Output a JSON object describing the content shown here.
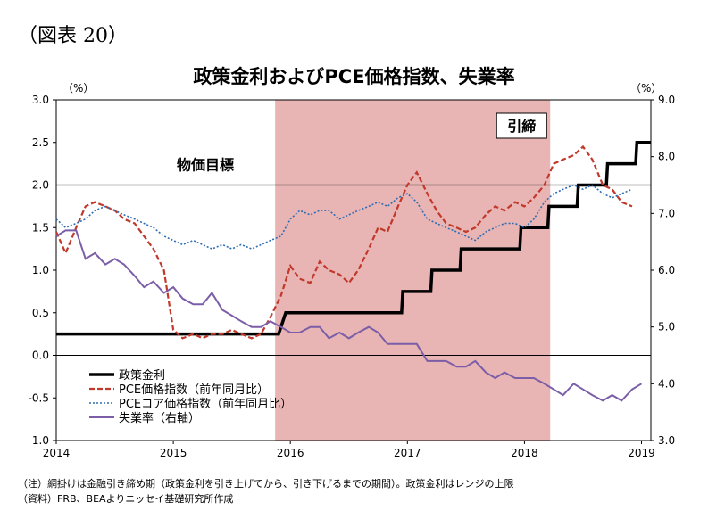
{
  "figure_label": "（図表 20）",
  "chart_data": {
    "type": "line",
    "title": "政策金利およびPCE価格指数、失業率",
    "left_unit": "（%）",
    "right_unit": "（%）",
    "x_tick_labels": [
      "2014",
      "2015",
      "2016",
      "2017",
      "2018",
      "2019"
    ],
    "x_range": [
      2014.0,
      2019.08
    ],
    "y_left_range": [
      -1.0,
      3.0
    ],
    "y_left_ticks": [
      "3.0",
      "2.5",
      "2.0",
      "1.5",
      "1.0",
      "0.5",
      "0.0",
      "-0.5",
      "-1.0"
    ],
    "y_right_range": [
      3.0,
      9.0
    ],
    "y_right_ticks": [
      "9.0",
      "8.0",
      "7.0",
      "6.0",
      "5.0",
      "4.0",
      "3.0"
    ],
    "shaded_period": {
      "start": 2015.87,
      "end": 2018.22,
      "label": "引締",
      "color": "#e8b4b4"
    },
    "target_line": {
      "value": 2.0,
      "label": "物価目標"
    },
    "series": [
      {
        "name": "政策金利",
        "axis": "left",
        "color": "#000000",
        "points": [
          [
            2014.0,
            0.25
          ],
          [
            2015.9,
            0.25
          ],
          [
            2015.96,
            0.5
          ],
          [
            2016.95,
            0.5
          ],
          [
            2016.96,
            0.75
          ],
          [
            2017.2,
            0.75
          ],
          [
            2017.21,
            1.0
          ],
          [
            2017.45,
            1.0
          ],
          [
            2017.46,
            1.25
          ],
          [
            2017.96,
            1.25
          ],
          [
            2017.97,
            1.5
          ],
          [
            2018.2,
            1.5
          ],
          [
            2018.21,
            1.75
          ],
          [
            2018.45,
            1.75
          ],
          [
            2018.46,
            2.0
          ],
          [
            2018.7,
            2.0
          ],
          [
            2018.71,
            2.25
          ],
          [
            2018.95,
            2.25
          ],
          [
            2018.96,
            2.5
          ],
          [
            2019.08,
            2.5
          ]
        ]
      },
      {
        "name": "PCE価格指数（前年同月比）",
        "axis": "left",
        "color": "#c0392b",
        "points": [
          [
            2014.0,
            1.45
          ],
          [
            2014.08,
            1.2
          ],
          [
            2014.17,
            1.5
          ],
          [
            2014.25,
            1.75
          ],
          [
            2014.33,
            1.8
          ],
          [
            2014.42,
            1.75
          ],
          [
            2014.5,
            1.7
          ],
          [
            2014.58,
            1.6
          ],
          [
            2014.67,
            1.55
          ],
          [
            2014.75,
            1.4
          ],
          [
            2014.83,
            1.25
          ],
          [
            2014.92,
            1.0
          ],
          [
            2015.0,
            0.3
          ],
          [
            2015.08,
            0.2
          ],
          [
            2015.17,
            0.25
          ],
          [
            2015.25,
            0.2
          ],
          [
            2015.33,
            0.25
          ],
          [
            2015.42,
            0.25
          ],
          [
            2015.5,
            0.3
          ],
          [
            2015.58,
            0.25
          ],
          [
            2015.67,
            0.2
          ],
          [
            2015.75,
            0.25
          ],
          [
            2015.83,
            0.45
          ],
          [
            2015.92,
            0.7
          ],
          [
            2016.0,
            1.05
          ],
          [
            2016.08,
            0.9
          ],
          [
            2016.17,
            0.85
          ],
          [
            2016.25,
            1.1
          ],
          [
            2016.33,
            1.0
          ],
          [
            2016.42,
            0.95
          ],
          [
            2016.5,
            0.85
          ],
          [
            2016.58,
            1.0
          ],
          [
            2016.67,
            1.25
          ],
          [
            2016.75,
            1.5
          ],
          [
            2016.83,
            1.45
          ],
          [
            2016.92,
            1.75
          ],
          [
            2017.0,
            2.0
          ],
          [
            2017.08,
            2.15
          ],
          [
            2017.17,
            1.9
          ],
          [
            2017.25,
            1.7
          ],
          [
            2017.33,
            1.55
          ],
          [
            2017.42,
            1.5
          ],
          [
            2017.5,
            1.45
          ],
          [
            2017.58,
            1.5
          ],
          [
            2017.67,
            1.65
          ],
          [
            2017.75,
            1.75
          ],
          [
            2017.83,
            1.7
          ],
          [
            2017.92,
            1.8
          ],
          [
            2018.0,
            1.75
          ],
          [
            2018.08,
            1.85
          ],
          [
            2018.17,
            2.0
          ],
          [
            2018.25,
            2.25
          ],
          [
            2018.33,
            2.3
          ],
          [
            2018.42,
            2.35
          ],
          [
            2018.5,
            2.45
          ],
          [
            2018.58,
            2.3
          ],
          [
            2018.67,
            2.0
          ],
          [
            2018.75,
            1.95
          ],
          [
            2018.83,
            1.8
          ],
          [
            2018.92,
            1.75
          ]
        ]
      },
      {
        "name": "PCEコア価格指数（前年同月比）",
        "axis": "left",
        "color": "#2e6db4",
        "points": [
          [
            2014.0,
            1.6
          ],
          [
            2014.08,
            1.5
          ],
          [
            2014.17,
            1.55
          ],
          [
            2014.25,
            1.6
          ],
          [
            2014.33,
            1.7
          ],
          [
            2014.42,
            1.75
          ],
          [
            2014.5,
            1.7
          ],
          [
            2014.58,
            1.65
          ],
          [
            2014.67,
            1.6
          ],
          [
            2014.75,
            1.55
          ],
          [
            2014.83,
            1.5
          ],
          [
            2014.92,
            1.4
          ],
          [
            2015.0,
            1.35
          ],
          [
            2015.08,
            1.3
          ],
          [
            2015.17,
            1.35
          ],
          [
            2015.25,
            1.3
          ],
          [
            2015.33,
            1.25
          ],
          [
            2015.42,
            1.3
          ],
          [
            2015.5,
            1.25
          ],
          [
            2015.58,
            1.3
          ],
          [
            2015.67,
            1.25
          ],
          [
            2015.75,
            1.3
          ],
          [
            2015.83,
            1.35
          ],
          [
            2015.92,
            1.4
          ],
          [
            2016.0,
            1.6
          ],
          [
            2016.08,
            1.7
          ],
          [
            2016.17,
            1.65
          ],
          [
            2016.25,
            1.7
          ],
          [
            2016.33,
            1.7
          ],
          [
            2016.42,
            1.6
          ],
          [
            2016.5,
            1.65
          ],
          [
            2016.58,
            1.7
          ],
          [
            2016.67,
            1.75
          ],
          [
            2016.75,
            1.8
          ],
          [
            2016.83,
            1.75
          ],
          [
            2016.92,
            1.85
          ],
          [
            2017.0,
            1.9
          ],
          [
            2017.08,
            1.8
          ],
          [
            2017.17,
            1.6
          ],
          [
            2017.25,
            1.55
          ],
          [
            2017.33,
            1.5
          ],
          [
            2017.42,
            1.45
          ],
          [
            2017.5,
            1.4
          ],
          [
            2017.58,
            1.35
          ],
          [
            2017.67,
            1.45
          ],
          [
            2017.75,
            1.5
          ],
          [
            2017.83,
            1.55
          ],
          [
            2017.92,
            1.55
          ],
          [
            2018.0,
            1.5
          ],
          [
            2018.08,
            1.6
          ],
          [
            2018.17,
            1.8
          ],
          [
            2018.25,
            1.9
          ],
          [
            2018.33,
            1.95
          ],
          [
            2018.42,
            2.0
          ],
          [
            2018.5,
            1.95
          ],
          [
            2018.58,
            2.0
          ],
          [
            2018.67,
            1.9
          ],
          [
            2018.75,
            1.85
          ],
          [
            2018.83,
            1.9
          ],
          [
            2018.92,
            1.95
          ]
        ]
      },
      {
        "name": "失業率（右軸）",
        "axis": "right",
        "color": "#7b5ea7",
        "points": [
          [
            2014.0,
            6.6
          ],
          [
            2014.08,
            6.7
          ],
          [
            2014.17,
            6.7
          ],
          [
            2014.25,
            6.2
          ],
          [
            2014.33,
            6.3
          ],
          [
            2014.42,
            6.1
          ],
          [
            2014.5,
            6.2
          ],
          [
            2014.58,
            6.1
          ],
          [
            2014.67,
            5.9
          ],
          [
            2014.75,
            5.7
          ],
          [
            2014.83,
            5.8
          ],
          [
            2014.92,
            5.6
          ],
          [
            2015.0,
            5.7
          ],
          [
            2015.08,
            5.5
          ],
          [
            2015.17,
            5.4
          ],
          [
            2015.25,
            5.4
          ],
          [
            2015.33,
            5.6
          ],
          [
            2015.42,
            5.3
          ],
          [
            2015.5,
            5.2
          ],
          [
            2015.58,
            5.1
          ],
          [
            2015.67,
            5.0
          ],
          [
            2015.75,
            5.0
          ],
          [
            2015.83,
            5.1
          ],
          [
            2015.92,
            5.0
          ],
          [
            2016.0,
            4.9
          ],
          [
            2016.08,
            4.9
          ],
          [
            2016.17,
            5.0
          ],
          [
            2016.25,
            5.0
          ],
          [
            2016.33,
            4.8
          ],
          [
            2016.42,
            4.9
          ],
          [
            2016.5,
            4.8
          ],
          [
            2016.58,
            4.9
          ],
          [
            2016.67,
            5.0
          ],
          [
            2016.75,
            4.9
          ],
          [
            2016.83,
            4.7
          ],
          [
            2016.92,
            4.7
          ],
          [
            2017.0,
            4.7
          ],
          [
            2017.08,
            4.7
          ],
          [
            2017.17,
            4.4
          ],
          [
            2017.25,
            4.4
          ],
          [
            2017.33,
            4.4
          ],
          [
            2017.42,
            4.3
          ],
          [
            2017.5,
            4.3
          ],
          [
            2017.58,
            4.4
          ],
          [
            2017.67,
            4.2
          ],
          [
            2017.75,
            4.1
          ],
          [
            2017.83,
            4.2
          ],
          [
            2017.92,
            4.1
          ],
          [
            2018.0,
            4.1
          ],
          [
            2018.08,
            4.1
          ],
          [
            2018.17,
            4.0
          ],
          [
            2018.25,
            3.9
          ],
          [
            2018.33,
            3.8
          ],
          [
            2018.42,
            4.0
          ],
          [
            2018.5,
            3.9
          ],
          [
            2018.58,
            3.8
          ],
          [
            2018.67,
            3.7
          ],
          [
            2018.75,
            3.8
          ],
          [
            2018.83,
            3.7
          ],
          [
            2018.92,
            3.9
          ],
          [
            2019.0,
            4.0
          ]
        ]
      }
    ]
  },
  "notes": [
    "（注）網掛けは金融引き締め期（政策金利を引き上げてから、引き下げるまでの期間）。政策金利はレンジの上限",
    "（資料）FRB、BEAよりニッセイ基礎研究所作成"
  ]
}
